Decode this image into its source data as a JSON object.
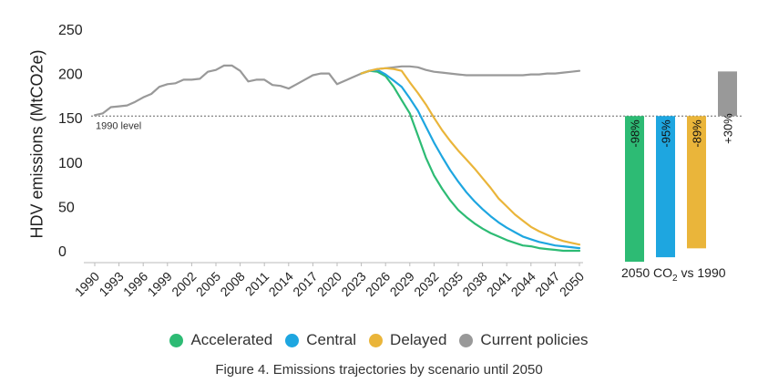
{
  "figure": {
    "caption": "Figure 4. Emissions trajectories by scenario until 2050",
    "bar_panel_title_prefix": "2050 CO",
    "bar_panel_title_subscript": "2",
    "bar_panel_title_suffix": " vs 1990"
  },
  "legend": [
    {
      "label": "Accelerated",
      "color": "#2dbb74"
    },
    {
      "label": "Central",
      "color": "#1ea6e0"
    },
    {
      "label": "Delayed",
      "color": "#eab53a"
    },
    {
      "label": "Current policies",
      "color": "#999999"
    }
  ],
  "chart_data": [
    {
      "type": "line",
      "ylabel": "HDV emissions (MtCO2e)",
      "xlabel": "",
      "ylim": [
        0,
        250
      ],
      "yticks": [
        0,
        50,
        100,
        150,
        200,
        250
      ],
      "xlim": [
        1990,
        2050
      ],
      "xticks": [
        "1990",
        "1993",
        "1996",
        "1999",
        "2002",
        "2005",
        "2008",
        "2011",
        "2014",
        "2017",
        "2020",
        "2023",
        "2026",
        "2029",
        "2032",
        "2035",
        "2038",
        "2041",
        "2044",
        "2047",
        "2050"
      ],
      "reference_line": {
        "value": 152,
        "label": "1990 level"
      },
      "series": [
        {
          "name": "Current policies",
          "color": "#999999",
          "x": [
            1990,
            1991,
            1992,
            1993,
            1994,
            1995,
            1996,
            1997,
            1998,
            1999,
            2000,
            2001,
            2002,
            2003,
            2004,
            2005,
            2006,
            2007,
            2008,
            2009,
            2010,
            2011,
            2012,
            2013,
            2014,
            2015,
            2016,
            2017,
            2018,
            2019,
            2020,
            2021,
            2022,
            2023,
            2024,
            2025,
            2026,
            2027,
            2028,
            2029,
            2030,
            2031,
            2032,
            2033,
            2034,
            2035,
            2036,
            2037,
            2038,
            2039,
            2040,
            2041,
            2042,
            2043,
            2044,
            2045,
            2046,
            2047,
            2048,
            2049,
            2050
          ],
          "y": [
            153,
            155,
            162,
            163,
            164,
            168,
            173,
            177,
            185,
            188,
            189,
            193,
            193,
            194,
            202,
            204,
            209,
            209,
            203,
            191,
            193,
            193,
            187,
            186,
            183,
            188,
            193,
            198,
            200,
            200,
            188,
            192,
            196,
            200,
            203,
            205,
            206,
            207,
            208,
            208,
            207,
            204,
            202,
            201,
            200,
            199,
            198,
            198,
            198,
            198,
            198,
            198,
            198,
            198,
            199,
            199,
            200,
            200,
            201,
            202,
            203
          ]
        },
        {
          "name": "Accelerated",
          "color": "#2dbb74",
          "x": [
            2023,
            2024,
            2025,
            2026,
            2027,
            2028,
            2029,
            2030,
            2031,
            2032,
            2033,
            2034,
            2035,
            2036,
            2037,
            2038,
            2039,
            2040,
            2041,
            2042,
            2043,
            2044,
            2045,
            2046,
            2047,
            2048,
            2049,
            2050
          ],
          "y": [
            200,
            203,
            202,
            197,
            185,
            170,
            155,
            130,
            105,
            85,
            70,
            57,
            46,
            38,
            31,
            25,
            20,
            16,
            12,
            9,
            6,
            5,
            3,
            2,
            1,
            0,
            0,
            0
          ]
        },
        {
          "name": "Central",
          "color": "#1ea6e0",
          "x": [
            2023,
            2024,
            2025,
            2026,
            2027,
            2028,
            2029,
            2030,
            2031,
            2032,
            2033,
            2034,
            2035,
            2036,
            2037,
            2038,
            2039,
            2040,
            2041,
            2042,
            2043,
            2044,
            2045,
            2046,
            2047,
            2048,
            2049,
            2050
          ],
          "y": [
            200,
            203,
            204,
            199,
            192,
            185,
            172,
            158,
            140,
            122,
            106,
            91,
            78,
            66,
            56,
            47,
            39,
            32,
            26,
            21,
            16,
            13,
            10,
            8,
            6,
            5,
            4,
            3
          ]
        },
        {
          "name": "Delayed",
          "color": "#eab53a",
          "x": [
            2023,
            2024,
            2025,
            2026,
            2027,
            2028,
            2029,
            2030,
            2031,
            2032,
            2033,
            2034,
            2035,
            2036,
            2037,
            2038,
            2039,
            2040,
            2041,
            2042,
            2043,
            2044,
            2045,
            2046,
            2047,
            2048,
            2049,
            2050
          ],
          "y": [
            200,
            203,
            205,
            206,
            205,
            203,
            190,
            178,
            165,
            150,
            136,
            124,
            113,
            103,
            93,
            82,
            71,
            59,
            50,
            41,
            34,
            27,
            22,
            18,
            14,
            11,
            9,
            7
          ]
        }
      ]
    },
    {
      "type": "bar",
      "categories": [
        "Accelerated",
        "Central",
        "Delayed",
        "Current policies"
      ],
      "values": [
        -98,
        -95,
        -89,
        30
      ],
      "labels": [
        "-98%",
        "-95%",
        "-89%",
        "+30%"
      ],
      "colors": [
        "#2dbb74",
        "#1ea6e0",
        "#eab53a",
        "#999999"
      ],
      "unit": "%"
    }
  ]
}
